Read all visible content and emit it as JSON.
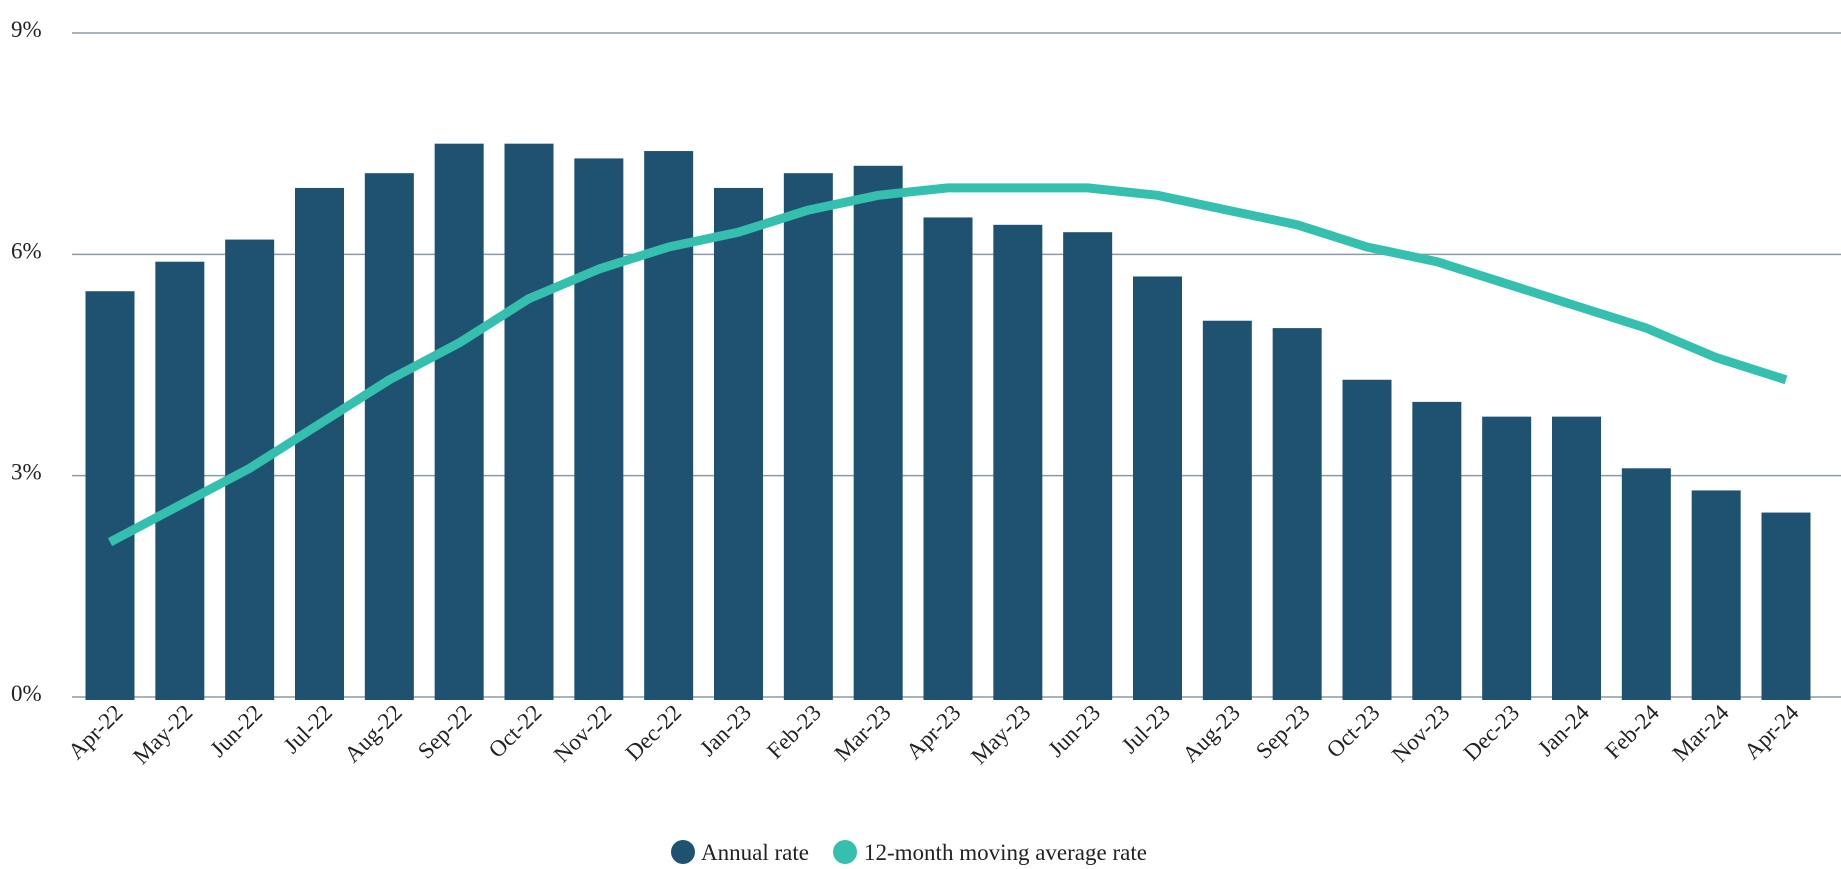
{
  "chart_data": {
    "type": "bar",
    "categories": [
      "Apr-22",
      "May-22",
      "Jun-22",
      "Jul-22",
      "Aug-22",
      "Sep-22",
      "Oct-22",
      "Nov-22",
      "Dec-22",
      "Jan-23",
      "Feb-23",
      "Mar-23",
      "Apr-23",
      "May-23",
      "Jun-23",
      "Jul-23",
      "Aug-23",
      "Sep-23",
      "Oct-23",
      "Nov-23",
      "Dec-23",
      "Jan-24",
      "Feb-24",
      "Mar-24",
      "Apr-24"
    ],
    "series": [
      {
        "name": "Annual rate",
        "type": "bar",
        "color": "#1f5270",
        "values": [
          5.5,
          5.9,
          6.2,
          6.9,
          7.1,
          7.5,
          7.5,
          7.3,
          7.4,
          6.9,
          7.1,
          7.2,
          6.5,
          6.4,
          6.3,
          5.7,
          5.1,
          5.0,
          4.3,
          4.0,
          3.8,
          3.8,
          3.1,
          2.8,
          2.5
        ]
      },
      {
        "name": "12-month moving average rate",
        "type": "line",
        "color": "#35bfae",
        "values": [
          2.1,
          2.6,
          3.1,
          3.7,
          4.3,
          4.8,
          5.4,
          5.8,
          6.1,
          6.3,
          6.6,
          6.8,
          6.9,
          6.9,
          6.9,
          6.8,
          6.6,
          6.4,
          6.1,
          5.9,
          5.6,
          5.3,
          5.0,
          4.6,
          4.3
        ]
      }
    ],
    "yticks": [
      0,
      3,
      6,
      9
    ],
    "ytick_labels": [
      "0%",
      "3%",
      "6%",
      "9%"
    ],
    "ylim": [
      0,
      9
    ],
    "grid": true,
    "gridline_color": "#8b9aa8",
    "legend_position": "bottom-center",
    "title": "",
    "xlabel": "",
    "ylabel": ""
  }
}
